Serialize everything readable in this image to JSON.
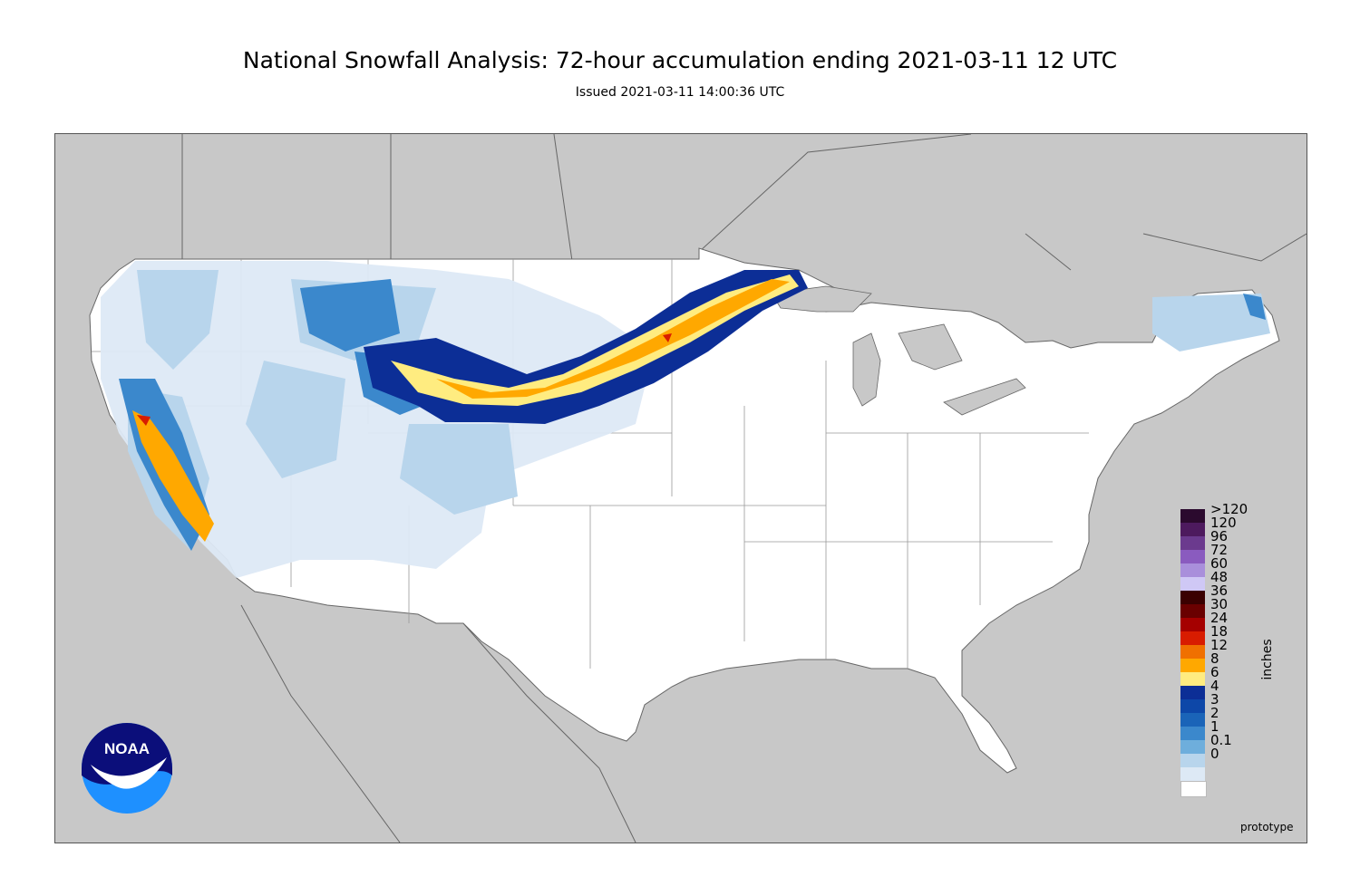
{
  "title": "National Snowfall Analysis: 72-hour accumulation ending 2021-03-11 12 UTC",
  "subtitle": "Issued 2021-03-11 14:00:36 UTC",
  "legend": {
    "units": "inches",
    "entries": [
      {
        "label": ">120",
        "color": "#2b0a2e"
      },
      {
        "label": "120",
        "color": "#4d1a5e"
      },
      {
        "label": "96",
        "color": "#6b3a8e"
      },
      {
        "label": "72",
        "color": "#8a5bbf"
      },
      {
        "label": "60",
        "color": "#a98fdb"
      },
      {
        "label": "48",
        "color": "#cfc8f5"
      },
      {
        "label": "36",
        "color": "#3a0000"
      },
      {
        "label": "30",
        "color": "#6a0000"
      },
      {
        "label": "24",
        "color": "#a50000"
      },
      {
        "label": "18",
        "color": "#d81c00"
      },
      {
        "label": "12",
        "color": "#f07000"
      },
      {
        "label": "8",
        "color": "#ffa800"
      },
      {
        "label": "6",
        "color": "#ffec80"
      },
      {
        "label": "4",
        "color": "#0c2e96"
      },
      {
        "label": "3",
        "color": "#0d47a8"
      },
      {
        "label": "2",
        "color": "#1a64b8"
      },
      {
        "label": "1",
        "color": "#3b88cc"
      },
      {
        "label": "0.1",
        "color": "#6eaedc"
      },
      {
        "label": "0",
        "color": "#b8d5ec"
      },
      {
        "label": "",
        "color": "#dde9f5"
      },
      {
        "label": "",
        "color": "#ffffff"
      }
    ]
  },
  "footer": {
    "note": "prototype"
  },
  "logo": {
    "text": "NOAA",
    "colors": {
      "top": "#0b0e7a",
      "bottom": "#1e90ff"
    }
  },
  "colors": {
    "land_us": "#ffffff",
    "background": "#c8c8c8",
    "water": "#c8c8c8"
  }
}
